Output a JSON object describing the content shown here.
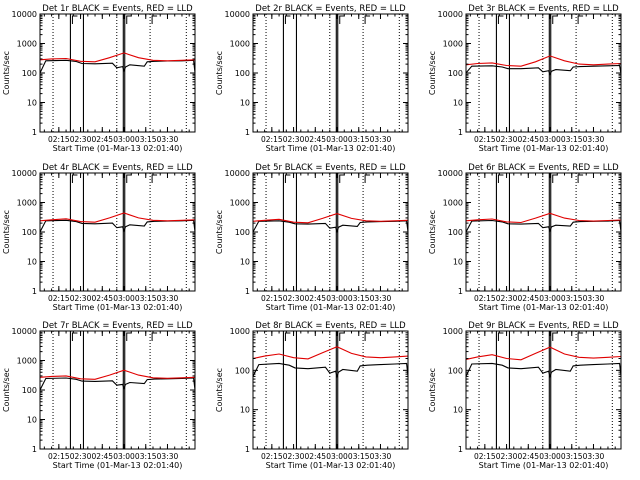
{
  "chart_data": [
    {
      "type": "line",
      "title": "Det 1r BLACK = Events, RED = LLD",
      "xlabel": "Start Time (01-Mar-13 02:01:40)",
      "ylabel": "Counts/sec",
      "yscale": "log",
      "ylim": [
        1,
        10000
      ],
      "xlim": [
        122,
        229
      ],
      "xtick_labels": [
        "02:15",
        "02:30",
        "02:45",
        "03:00",
        "03:15",
        "03:30"
      ],
      "xtick_values": [
        135,
        150,
        165,
        180,
        195,
        210
      ],
      "ytick_labels": [
        "1",
        "10",
        "100",
        "1000",
        "10000"
      ],
      "ytick_values": [
        1,
        10,
        100,
        1000,
        10000
      ],
      "vlines_solid": [
        143,
        152,
        179.5,
        180.5
      ],
      "vlines_dotted": [
        131,
        175,
        198,
        223
      ],
      "series": [
        {
          "name": "Events",
          "color": "#000000",
          "x": [
            122,
            126,
            140,
            147,
            151,
            160,
            172,
            175,
            179,
            180,
            181,
            184,
            194,
            196,
            201,
            210,
            220,
            228,
            229
          ],
          "y": [
            100,
            260,
            270,
            245,
            210,
            205,
            215,
            150,
            165,
            120,
            160,
            190,
            170,
            240,
            250,
            255,
            260,
            270,
            100
          ]
        },
        {
          "name": "LLD",
          "color": "#e00000",
          "x": [
            122,
            130,
            140,
            150,
            160,
            170,
            180,
            190,
            200,
            210,
            220,
            229
          ],
          "y": [
            280,
            300,
            310,
            250,
            240,
            330,
            480,
            330,
            270,
            260,
            270,
            280
          ]
        }
      ]
    },
    {
      "type": "line",
      "title": "Det 2r BLACK = Events, RED = LLD",
      "xlabel": "Start Time (01-Mar-13 02:01:40)",
      "ylabel": "Counts/sec",
      "yscale": "log",
      "ylim": [
        1,
        10000
      ],
      "xlim": [
        122,
        229
      ],
      "xtick_labels": [
        "02:15",
        "02:30",
        "02:45",
        "03:00",
        "03:15",
        "03:30"
      ],
      "xtick_values": [
        135,
        150,
        165,
        180,
        195,
        210
      ],
      "ytick_labels": [
        "1",
        "10",
        "100",
        "1000",
        "10000"
      ],
      "ytick_values": [
        1,
        10,
        100,
        1000,
        10000
      ],
      "vlines_solid": [
        143,
        152,
        179.5,
        180.5
      ],
      "vlines_dotted": [
        131,
        175,
        198,
        223
      ],
      "series": [
        {
          "name": "Events",
          "color": "#000000",
          "x": [],
          "y": []
        },
        {
          "name": "LLD",
          "color": "#e00000",
          "x": [],
          "y": []
        }
      ]
    },
    {
      "type": "line",
      "title": "Det 3r BLACK = Events, RED = LLD",
      "xlabel": "Start Time (01-Mar-13 02:01:40)",
      "ylabel": "Counts/sec",
      "yscale": "log",
      "ylim": [
        1,
        10000
      ],
      "xlim": [
        122,
        229
      ],
      "xtick_labels": [
        "02:15",
        "02:30",
        "02:45",
        "03:00",
        "03:15",
        "03:30"
      ],
      "xtick_values": [
        135,
        150,
        165,
        180,
        195,
        210
      ],
      "ytick_labels": [
        "1",
        "10",
        "100",
        "1000",
        "10000"
      ],
      "ytick_values": [
        1,
        10,
        100,
        1000,
        10000
      ],
      "vlines_solid": [
        143,
        152,
        179.5,
        180.5
      ],
      "vlines_dotted": [
        131,
        175,
        198,
        223
      ],
      "series": [
        {
          "name": "Events",
          "color": "#000000",
          "x": [
            122,
            126,
            140,
            147,
            151,
            160,
            172,
            175,
            179,
            180,
            181,
            184,
            194,
            196,
            201,
            210,
            220,
            228,
            229
          ],
          "y": [
            100,
            170,
            175,
            160,
            140,
            140,
            150,
            110,
            120,
            90,
            115,
            130,
            120,
            160,
            165,
            170,
            175,
            180,
            90
          ]
        },
        {
          "name": "LLD",
          "color": "#e00000",
          "x": [
            122,
            130,
            140,
            150,
            160,
            170,
            180,
            190,
            200,
            210,
            220,
            229
          ],
          "y": [
            190,
            210,
            220,
            180,
            170,
            240,
            380,
            260,
            200,
            190,
            200,
            210
          ]
        }
      ]
    },
    {
      "type": "line",
      "title": "Det 4r BLACK = Events, RED = LLD",
      "xlabel": "Start Time (01-Mar-13 02:01:40)",
      "ylabel": "Counts/sec",
      "yscale": "log",
      "ylim": [
        1,
        10000
      ],
      "xlim": [
        122,
        229
      ],
      "xtick_labels": [
        "02:15",
        "02:30",
        "02:45",
        "03:00",
        "03:15",
        "03:30"
      ],
      "xtick_values": [
        135,
        150,
        165,
        180,
        195,
        210
      ],
      "ytick_labels": [
        "1",
        "10",
        "100",
        "1000",
        "10000"
      ],
      "ytick_values": [
        1,
        10,
        100,
        1000,
        10000
      ],
      "vlines_solid": [
        143,
        152,
        179.5,
        180.5
      ],
      "vlines_dotted": [
        131,
        175,
        198,
        223
      ],
      "series": [
        {
          "name": "Events",
          "color": "#000000",
          "x": [
            122,
            126,
            140,
            147,
            151,
            160,
            172,
            175,
            179,
            180,
            181,
            184,
            194,
            196,
            201,
            210,
            220,
            228,
            229
          ],
          "y": [
            100,
            240,
            250,
            225,
            195,
            190,
            200,
            140,
            150,
            110,
            150,
            175,
            160,
            220,
            230,
            235,
            240,
            250,
            100
          ]
        },
        {
          "name": "LLD",
          "color": "#e00000",
          "x": [
            122,
            130,
            140,
            150,
            160,
            170,
            180,
            190,
            200,
            210,
            220,
            229
          ],
          "y": [
            240,
            260,
            280,
            225,
            215,
            300,
            440,
            300,
            250,
            240,
            250,
            260
          ]
        }
      ]
    },
    {
      "type": "line",
      "title": "Det 5r BLACK = Events, RED = LLD",
      "xlabel": "Start Time (01-Mar-13 02:01:40)",
      "ylabel": "Counts/sec",
      "yscale": "log",
      "ylim": [
        1,
        10000
      ],
      "xlim": [
        122,
        229
      ],
      "xtick_labels": [
        "02:15",
        "02:30",
        "02:45",
        "03:00",
        "03:15",
        "03:30"
      ],
      "xtick_values": [
        135,
        150,
        165,
        180,
        195,
        210
      ],
      "ytick_labels": [
        "1",
        "10",
        "100",
        "1000",
        "10000"
      ],
      "ytick_values": [
        1,
        10,
        100,
        1000,
        10000
      ],
      "vlines_solid": [
        143,
        152,
        179.5,
        180.5
      ],
      "vlines_dotted": [
        131,
        175,
        198,
        223
      ],
      "series": [
        {
          "name": "Events",
          "color": "#000000",
          "x": [
            122,
            126,
            140,
            147,
            151,
            160,
            172,
            175,
            179,
            180,
            181,
            184,
            194,
            196,
            201,
            210,
            220,
            228,
            229
          ],
          "y": [
            100,
            230,
            240,
            215,
            190,
            185,
            195,
            135,
            145,
            105,
            145,
            170,
            155,
            210,
            220,
            225,
            230,
            240,
            100
          ]
        },
        {
          "name": "LLD",
          "color": "#e00000",
          "x": [
            122,
            130,
            140,
            150,
            160,
            170,
            180,
            190,
            200,
            210,
            220,
            229
          ],
          "y": [
            230,
            250,
            270,
            215,
            205,
            290,
            420,
            290,
            240,
            230,
            240,
            250
          ]
        }
      ]
    },
    {
      "type": "line",
      "title": "Det 6r BLACK = Events, RED = LLD",
      "xlabel": "Start Time (01-Mar-13 02:01:40)",
      "ylabel": "Counts/sec",
      "yscale": "log",
      "ylim": [
        1,
        10000
      ],
      "xlim": [
        122,
        229
      ],
      "xtick_labels": [
        "02:15",
        "02:30",
        "02:45",
        "03:00",
        "03:15",
        "03:30"
      ],
      "xtick_values": [
        135,
        150,
        165,
        180,
        195,
        210
      ],
      "ytick_labels": [
        "1",
        "10",
        "100",
        "1000",
        "10000"
      ],
      "ytick_values": [
        1,
        10,
        100,
        1000,
        10000
      ],
      "vlines_solid": [
        143,
        152,
        179.5,
        180.5
      ],
      "vlines_dotted": [
        131,
        175,
        198,
        223
      ],
      "series": [
        {
          "name": "Events",
          "color": "#000000",
          "x": [
            122,
            126,
            140,
            147,
            151,
            160,
            172,
            175,
            179,
            180,
            181,
            184,
            194,
            196,
            201,
            210,
            220,
            228,
            229
          ],
          "y": [
            100,
            235,
            245,
            220,
            190,
            185,
            195,
            140,
            150,
            110,
            150,
            170,
            160,
            215,
            225,
            230,
            235,
            245,
            100
          ]
        },
        {
          "name": "LLD",
          "color": "#e00000",
          "x": [
            122,
            130,
            140,
            150,
            160,
            170,
            180,
            190,
            200,
            210,
            220,
            229
          ],
          "y": [
            240,
            260,
            275,
            220,
            210,
            295,
            430,
            295,
            245,
            235,
            245,
            255
          ]
        }
      ]
    },
    {
      "type": "line",
      "title": "Det 7r BLACK = Events, RED = LLD",
      "xlabel": "Start Time (01-Mar-13 02:01:40)",
      "ylabel": "Counts/sec",
      "yscale": "log",
      "ylim": [
        1,
        10000
      ],
      "xlim": [
        122,
        229
      ],
      "xtick_labels": [
        "02:15",
        "02:30",
        "02:45",
        "03:00",
        "03:15",
        "03:30"
      ],
      "xtick_values": [
        135,
        150,
        165,
        180,
        195,
        210
      ],
      "ytick_labels": [
        "1",
        "10",
        "100",
        "1000",
        "10000"
      ],
      "ytick_values": [
        1,
        10,
        100,
        1000,
        10000
      ],
      "vlines_solid": [
        143,
        152,
        179.5,
        180.5
      ],
      "vlines_dotted": [
        131,
        175,
        198,
        223
      ],
      "series": [
        {
          "name": "Events",
          "color": "#000000",
          "x": [
            122,
            126,
            140,
            147,
            151,
            160,
            172,
            175,
            179,
            180,
            181,
            184,
            194,
            196,
            201,
            210,
            220,
            228,
            229
          ],
          "y": [
            100,
            245,
            255,
            230,
            200,
            195,
            205,
            145,
            155,
            115,
            155,
            180,
            165,
            225,
            235,
            240,
            245,
            255,
            100
          ]
        },
        {
          "name": "LLD",
          "color": "#e00000",
          "x": [
            122,
            130,
            140,
            150,
            160,
            170,
            180,
            190,
            200,
            210,
            220,
            229
          ],
          "y": [
            270,
            290,
            300,
            240,
            230,
            320,
            470,
            320,
            260,
            250,
            260,
            270
          ]
        }
      ]
    },
    {
      "type": "line",
      "title": "Det 8r BLACK = Events, RED = LLD",
      "xlabel": "Start Time (01-Mar-13 02:01:40)",
      "ylabel": "Counts/sec",
      "yscale": "log",
      "ylim": [
        1,
        1000
      ],
      "xlim": [
        122,
        229
      ],
      "xtick_labels": [
        "02:15",
        "02:30",
        "02:45",
        "03:00",
        "03:15",
        "03:30"
      ],
      "xtick_values": [
        135,
        150,
        165,
        180,
        195,
        210
      ],
      "ytick_labels": [
        "1",
        "10",
        "100",
        "1000"
      ],
      "ytick_values": [
        1,
        10,
        100,
        1000
      ],
      "vlines_solid": [
        143,
        152,
        179.5,
        180.5
      ],
      "vlines_dotted": [
        131,
        175,
        198,
        223
      ],
      "series": [
        {
          "name": "Events",
          "color": "#000000",
          "x": [
            122,
            126,
            140,
            147,
            151,
            160,
            172,
            175,
            179,
            180,
            181,
            184,
            194,
            196,
            201,
            210,
            220,
            228,
            229
          ],
          "y": [
            70,
            140,
            150,
            135,
            115,
            110,
            120,
            85,
            95,
            70,
            90,
            105,
            95,
            130,
            135,
            140,
            145,
            150,
            70
          ]
        },
        {
          "name": "LLD",
          "color": "#e00000",
          "x": [
            122,
            130,
            140,
            150,
            160,
            170,
            180,
            190,
            200,
            210,
            220,
            229
          ],
          "y": [
            200,
            230,
            260,
            210,
            195,
            280,
            400,
            270,
            220,
            210,
            220,
            230
          ]
        }
      ]
    },
    {
      "type": "line",
      "title": "Det 9r BLACK = Events, RED = LLD",
      "xlabel": "Start Time (01-Mar-13 02:01:40)",
      "ylabel": "Counts/sec",
      "yscale": "log",
      "ylim": [
        1,
        1000
      ],
      "xlim": [
        122,
        229
      ],
      "xtick_labels": [
        "02:15",
        "02:30",
        "02:45",
        "03:00",
        "03:15",
        "03:30"
      ],
      "xtick_values": [
        135,
        150,
        165,
        180,
        195,
        210
      ],
      "ytick_labels": [
        "1",
        "10",
        "100",
        "1000"
      ],
      "ytick_values": [
        1,
        10,
        100,
        1000
      ],
      "vlines_solid": [
        143,
        152,
        179.5,
        180.5
      ],
      "vlines_dotted": [
        131,
        175,
        198,
        223
      ],
      "series": [
        {
          "name": "Events",
          "color": "#000000",
          "x": [
            122,
            126,
            140,
            147,
            151,
            160,
            172,
            175,
            179,
            180,
            181,
            184,
            194,
            196,
            201,
            210,
            220,
            228,
            229
          ],
          "y": [
            70,
            145,
            150,
            135,
            115,
            110,
            120,
            85,
            95,
            70,
            90,
            105,
            95,
            130,
            135,
            140,
            145,
            150,
            70
          ]
        },
        {
          "name": "LLD",
          "color": "#e00000",
          "x": [
            122,
            130,
            140,
            150,
            160,
            170,
            180,
            190,
            200,
            210,
            220,
            229
          ],
          "y": [
            190,
            220,
            250,
            200,
            185,
            270,
            390,
            260,
            215,
            205,
            215,
            225
          ]
        }
      ]
    }
  ]
}
